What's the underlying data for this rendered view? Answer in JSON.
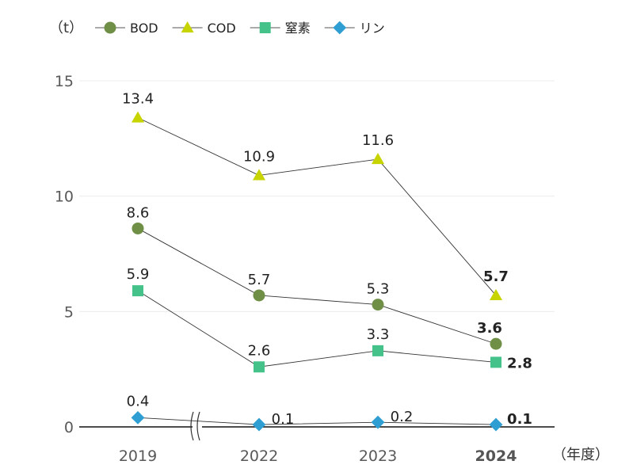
{
  "chart_data": {
    "type": "line",
    "categories": [
      "2019",
      "2022",
      "2023",
      "2024"
    ],
    "highlight_category": "2024",
    "y_unit": "（t）",
    "x_unit": "（年度）",
    "ylim": [
      0,
      15
    ],
    "yticks": [
      0,
      5,
      10,
      15
    ],
    "grid": true,
    "axis_break_between": [
      "2019",
      "2022"
    ],
    "legend_position": "top",
    "series": [
      {
        "name": "BOD",
        "marker": "circle",
        "color": "#6e8f45",
        "values": [
          8.6,
          5.7,
          5.3,
          3.6
        ]
      },
      {
        "name": "COD",
        "marker": "triangle",
        "color": "#c8d400",
        "values": [
          13.4,
          10.9,
          11.6,
          5.7
        ]
      },
      {
        "name": "窒素",
        "marker": "square",
        "color": "#45c28a",
        "values": [
          5.9,
          2.6,
          3.3,
          2.8
        ]
      },
      {
        "name": "リン",
        "marker": "diamond",
        "color": "#2f9fd3",
        "values": [
          0.4,
          0.1,
          0.2,
          0.1
        ]
      }
    ]
  }
}
